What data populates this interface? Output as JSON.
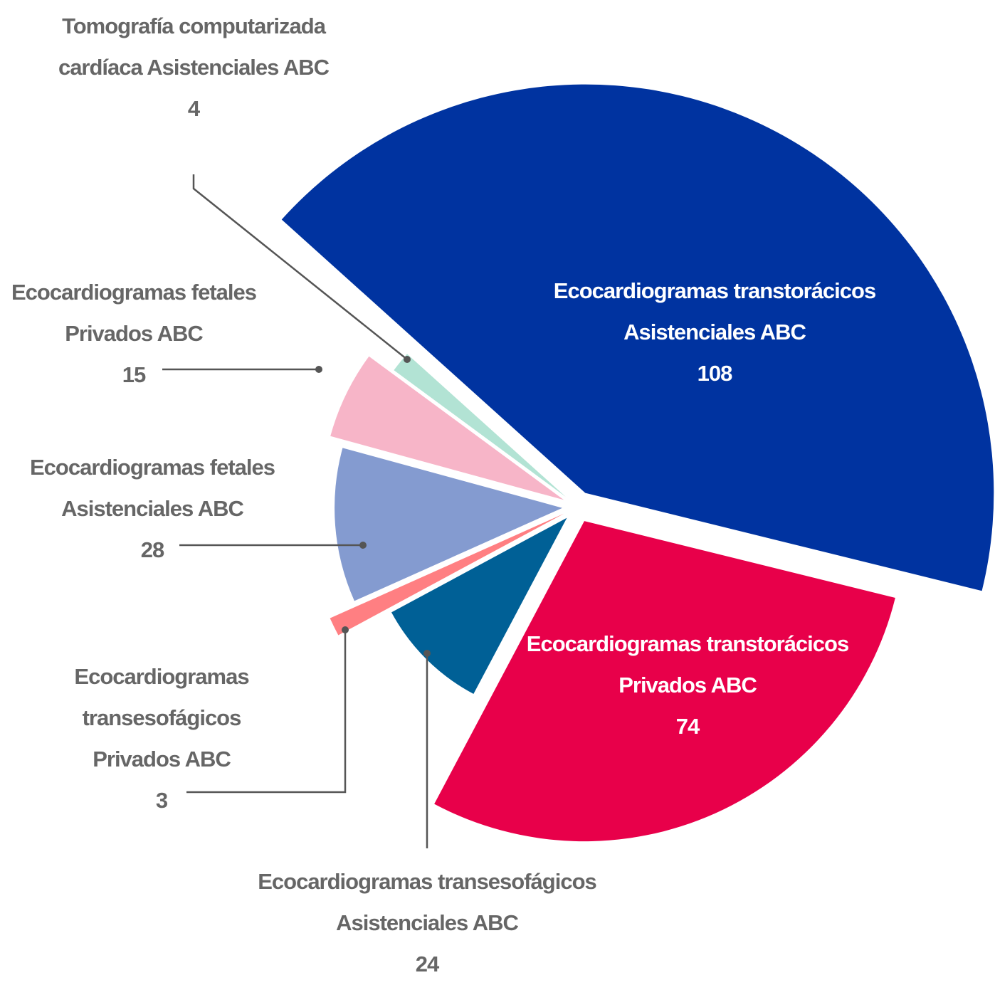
{
  "chart_data": {
    "type": "pie",
    "categories": [
      "Ecocardiogramas transtorácicos Asistenciales ABC",
      "Ecocardiogramas transtorácicos Privados ABC",
      "Ecocardiogramas transesofágicos Asistenciales ABC",
      "Ecocardiogramas transesofágicos Privados ABC",
      "Ecocardiogramas fetales Asistenciales ABC",
      "Ecocardiogramas fetales Privados ABC",
      "Tomografía computarizada cardíaca Asistenciales ABC"
    ],
    "values": [
      108,
      74,
      24,
      3,
      28,
      15,
      4
    ],
    "colors": [
      "#0033a0",
      "#e8004a",
      "#006096",
      "#ff7f82",
      "#849bd0",
      "#f7b5c8",
      "#b2e3d4"
    ]
  }
}
